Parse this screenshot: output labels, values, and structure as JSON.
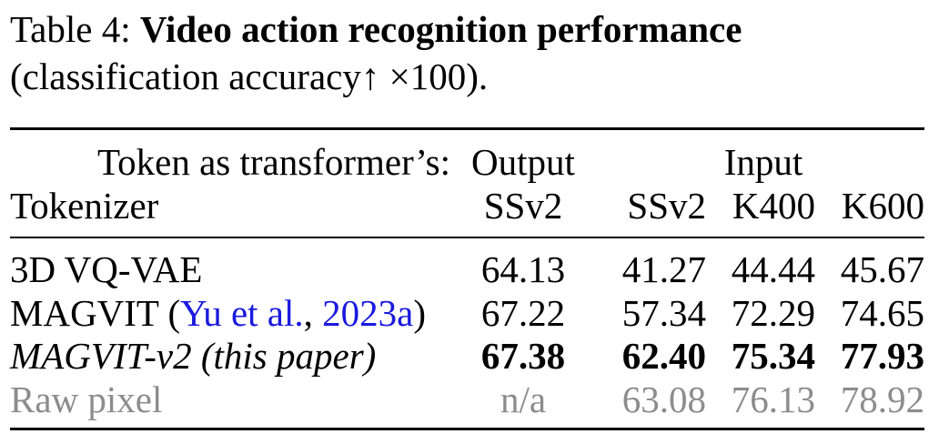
{
  "caption": {
    "label": "Table 4:",
    "title": "Video action recognition performance",
    "subtitle_prefix": "(classification accuracy",
    "arrow": "↑",
    "times": "×",
    "subtitle_suffix": "100)."
  },
  "header": {
    "row1_label": "Token as transformer’s:",
    "group_output": "Output",
    "group_input": "Input",
    "row2_label": "Tokenizer",
    "columns": [
      "SSv2",
      "SSv2",
      "K400",
      "K600"
    ]
  },
  "rows": [
    {
      "name": "3D VQ-VAE",
      "values": [
        "64.13",
        "41.27",
        "44.44",
        "45.67"
      ]
    },
    {
      "name": "MAGVIT",
      "cite_open": "(",
      "cite_author": "Yu et al.",
      "cite_sep": ", ",
      "cite_year": "2023a",
      "cite_close": ")",
      "values": [
        "67.22",
        "57.34",
        "72.29",
        "74.65"
      ]
    },
    {
      "name": "MAGVIT-v2 (this paper)",
      "values": [
        "67.38",
        "62.40",
        "75.34",
        "77.93"
      ]
    },
    {
      "name": "Raw pixel",
      "values": [
        "n/a",
        "63.08",
        "76.13",
        "78.92"
      ]
    }
  ]
}
